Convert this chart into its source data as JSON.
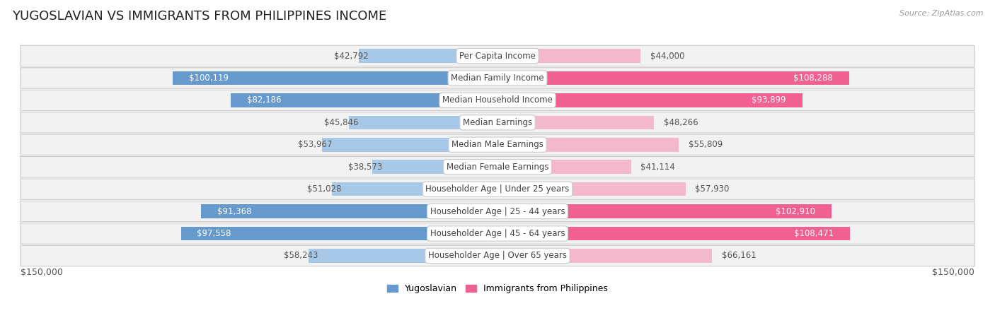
{
  "title": "YUGOSLAVIAN VS IMMIGRANTS FROM PHILIPPINES INCOME",
  "source": "Source: ZipAtlas.com",
  "categories": [
    "Per Capita Income",
    "Median Family Income",
    "Median Household Income",
    "Median Earnings",
    "Median Male Earnings",
    "Median Female Earnings",
    "Householder Age | Under 25 years",
    "Householder Age | 25 - 44 years",
    "Householder Age | 45 - 64 years",
    "Householder Age | Over 65 years"
  ],
  "yugoslavian_values": [
    42792,
    100119,
    82186,
    45846,
    53967,
    38573,
    51028,
    91368,
    97558,
    58243
  ],
  "philippines_values": [
    44000,
    108288,
    93899,
    48266,
    55809,
    41114,
    57930,
    102910,
    108471,
    66161
  ],
  "yugoslavian_labels": [
    "$42,792",
    "$100,119",
    "$82,186",
    "$45,846",
    "$53,967",
    "$38,573",
    "$51,028",
    "$91,368",
    "$97,558",
    "$58,243"
  ],
  "philippines_labels": [
    "$44,000",
    "$108,288",
    "$93,899",
    "$48,266",
    "$55,809",
    "$41,114",
    "$57,930",
    "$102,910",
    "$108,471",
    "$66,161"
  ],
  "yugoslav_color_light": "#a8c8e8",
  "yugoslav_color_dark": "#6699cc",
  "philippines_color_light": "#f4b8cc",
  "philippines_color_dark": "#f06090",
  "inside_label_threshold": 75000,
  "max_value": 150000,
  "xlabel_left": "$150,000",
  "xlabel_right": "$150,000",
  "legend_yugoslav": "Yugoslavian",
  "legend_philippines": "Immigrants from Philippines",
  "bar_height": 0.62,
  "title_fontsize": 13,
  "label_fontsize": 8.5,
  "category_fontsize": 8.5,
  "inside_label_color": "white",
  "outside_label_color": "#555555"
}
